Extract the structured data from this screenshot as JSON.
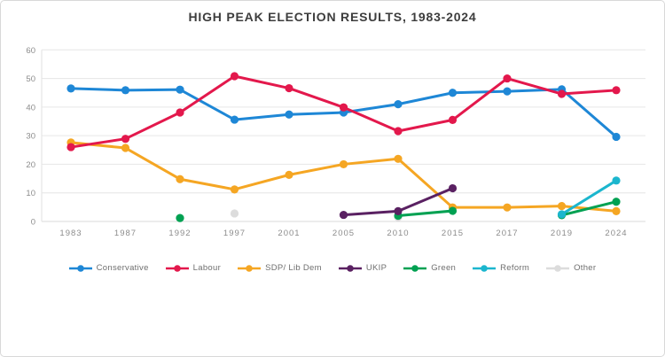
{
  "title": "HIGH PEAK ELECTION RESULTS, 1983-2024",
  "colors": {
    "background": "#ffffff",
    "card_border": "#d8d8d8",
    "grid": "#e6e6e6",
    "zero_line": "#d9d9d9",
    "axis_line": "#e2e2e2",
    "axis_text": "#8c8c8c",
    "title_text": "#3d3d3d",
    "legend_text": "#6f6f6f"
  },
  "chart_data": {
    "type": "line",
    "title": "HIGH PEAK ELECTION RESULTS, 1983-2024",
    "xlabel": "",
    "ylabel": "",
    "ylim": [
      0,
      60
    ],
    "ytick_interval": 10,
    "yticks": [
      0,
      10,
      20,
      30,
      40,
      50,
      60
    ],
    "grid": true,
    "legend_position": "bottom",
    "categories": [
      "1983",
      "1987",
      "1992",
      "1997",
      "2001",
      "2005",
      "2010",
      "2015",
      "2017",
      "2019",
      "2024"
    ],
    "series": [
      {
        "name": "Conservative",
        "color": "#1E87D6",
        "values": [
          46.5,
          45.9,
          46.1,
          35.6,
          37.4,
          38.1,
          41.0,
          45.0,
          45.5,
          46.2,
          29.6
        ]
      },
      {
        "name": "Labour",
        "color": "#E3184C",
        "values": [
          26.0,
          28.9,
          38.1,
          50.8,
          46.6,
          39.9,
          31.6,
          35.5,
          50.0,
          44.6,
          45.9
        ]
      },
      {
        "name": "SDP/ Lib Dem",
        "color": "#F5A623",
        "values": [
          27.6,
          25.7,
          14.8,
          11.2,
          16.3,
          20.0,
          21.9,
          4.9,
          4.9,
          5.4,
          3.6
        ]
      },
      {
        "name": "UKIP",
        "color": "#5A2162",
        "values": [
          null,
          null,
          null,
          null,
          null,
          2.3,
          3.6,
          11.6,
          null,
          null,
          null
        ]
      },
      {
        "name": "Green",
        "color": "#00A152",
        "values": [
          null,
          null,
          1.2,
          null,
          null,
          null,
          2.0,
          3.7,
          null,
          2.2,
          6.9
        ]
      },
      {
        "name": "Reform",
        "color": "#1BB6CE",
        "values": [
          null,
          null,
          null,
          null,
          null,
          null,
          null,
          null,
          null,
          2.5,
          14.3
        ]
      },
      {
        "name": "Other",
        "color": "#DCDCDC",
        "values": [
          null,
          null,
          null,
          2.8,
          null,
          null,
          1.5,
          null,
          null,
          null,
          null
        ]
      }
    ]
  }
}
